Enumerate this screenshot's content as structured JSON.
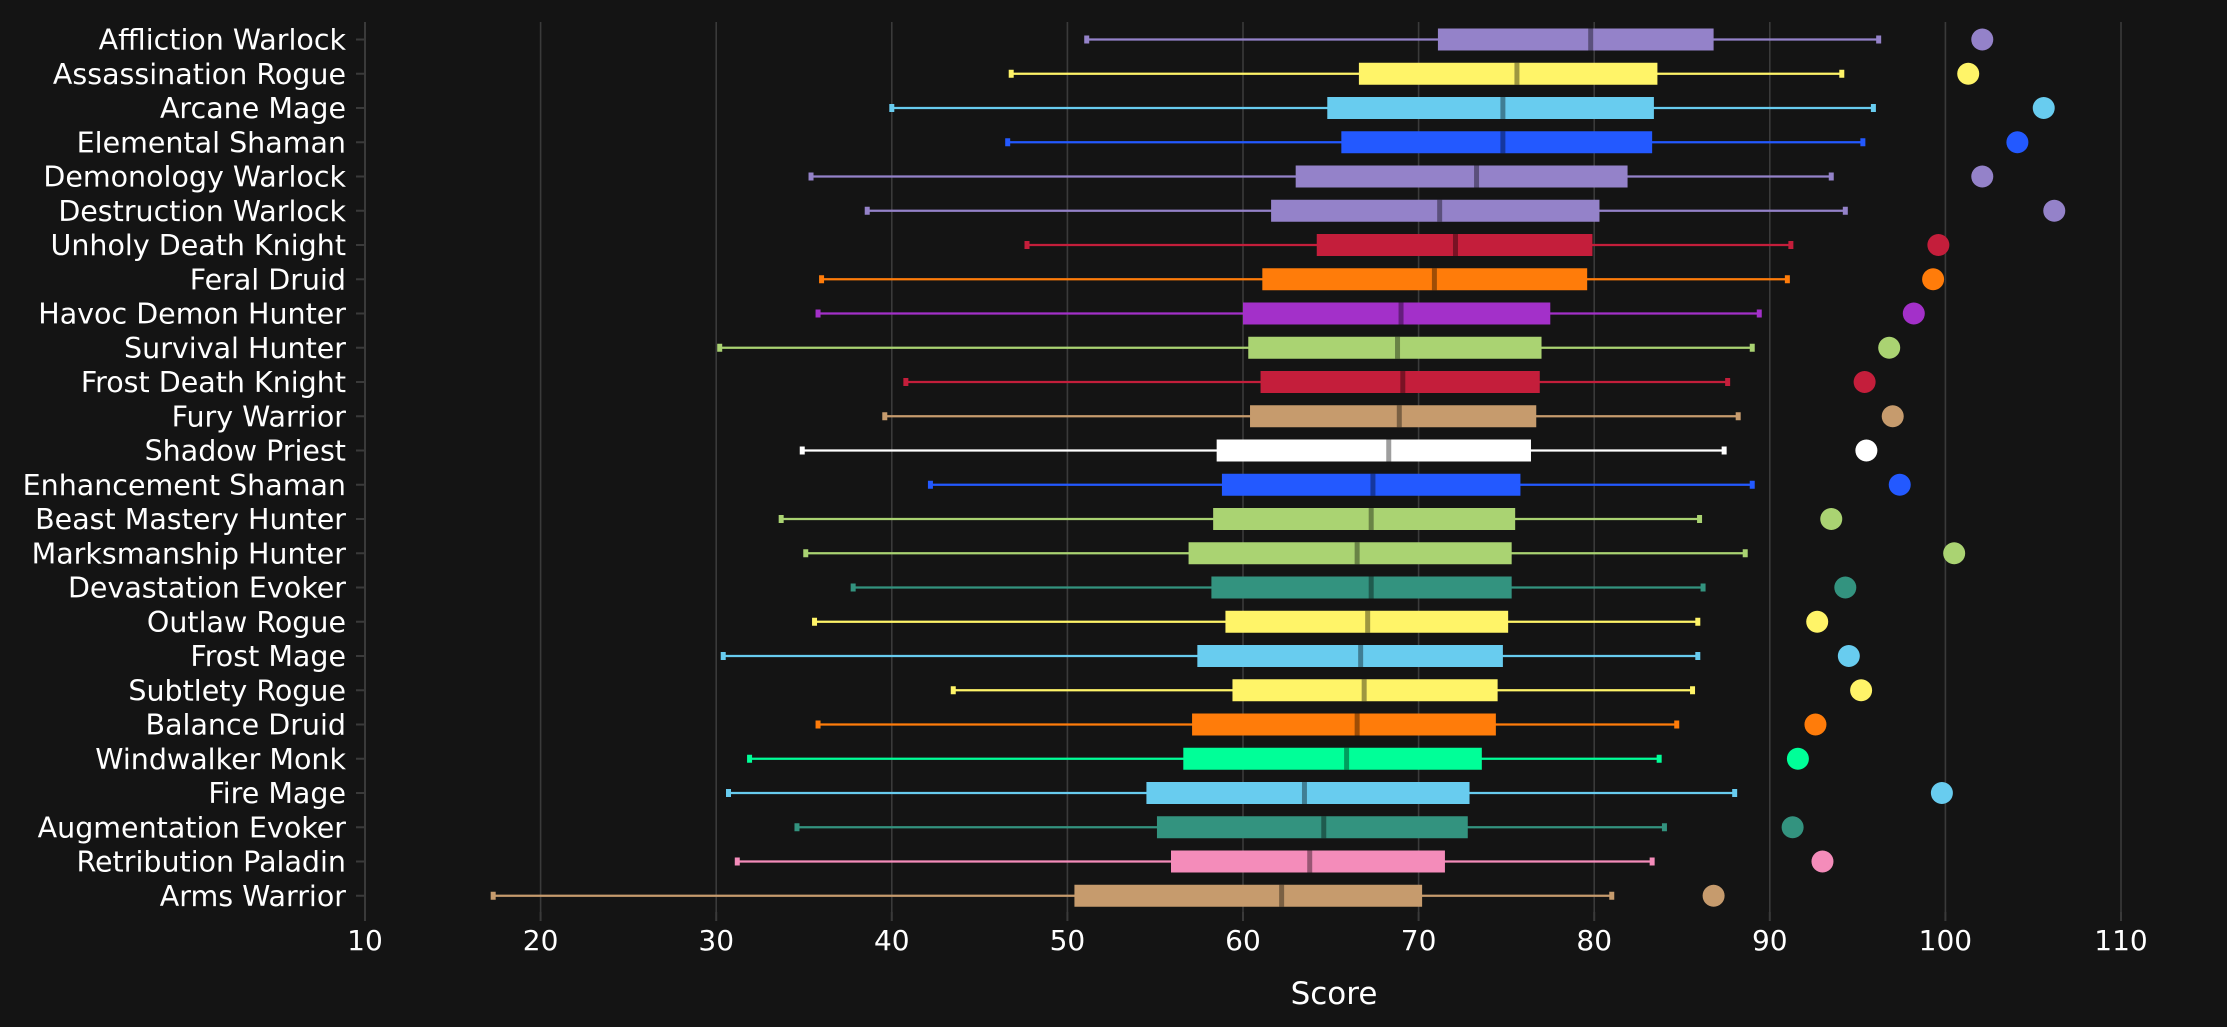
{
  "chart_data": {
    "type": "box",
    "xlabel": "Score",
    "xlim": [
      10,
      110
    ],
    "x_ticks": [
      10,
      20,
      30,
      40,
      50,
      60,
      70,
      80,
      90,
      100,
      110
    ],
    "grid": "vertical",
    "series": [
      {
        "name": "Affliction Warlock",
        "color": "#9482c9",
        "whisker_low": 51.1,
        "q1": 71.1,
        "median": 79.8,
        "q3": 86.8,
        "whisker_high": 96.2,
        "max_point": 102.1
      },
      {
        "name": "Assassination Rogue",
        "color": "#fff468",
        "whisker_low": 46.8,
        "q1": 66.6,
        "median": 75.6,
        "q3": 83.6,
        "whisker_high": 94.1,
        "max_point": 101.3
      },
      {
        "name": "Arcane Mage",
        "color": "#68ccef",
        "whisker_low": 40.0,
        "q1": 64.8,
        "median": 74.8,
        "q3": 83.4,
        "whisker_high": 95.9,
        "max_point": 105.6
      },
      {
        "name": "Elemental Shaman",
        "color": "#2359ff",
        "whisker_low": 46.6,
        "q1": 65.6,
        "median": 74.8,
        "q3": 83.3,
        "whisker_high": 95.3,
        "max_point": 104.1
      },
      {
        "name": "Demonology Warlock",
        "color": "#9482c9",
        "whisker_low": 35.4,
        "q1": 63.0,
        "median": 73.3,
        "q3": 81.9,
        "whisker_high": 93.5,
        "max_point": 102.1
      },
      {
        "name": "Destruction Warlock",
        "color": "#9482c9",
        "whisker_low": 38.6,
        "q1": 61.6,
        "median": 71.2,
        "q3": 80.3,
        "whisker_high": 94.3,
        "max_point": 106.2
      },
      {
        "name": "Unholy Death Knight",
        "color": "#c41e3b",
        "whisker_low": 47.7,
        "q1": 64.2,
        "median": 72.1,
        "q3": 79.9,
        "whisker_high": 91.2,
        "max_point": 99.6
      },
      {
        "name": "Feral Druid",
        "color": "#ff7c0a",
        "whisker_low": 36.0,
        "q1": 61.1,
        "median": 70.9,
        "q3": 79.6,
        "whisker_high": 91.0,
        "max_point": 99.3
      },
      {
        "name": "Havoc Demon Hunter",
        "color": "#a330c9",
        "whisker_low": 35.8,
        "q1": 60.0,
        "median": 69.0,
        "q3": 77.5,
        "whisker_high": 89.4,
        "max_point": 98.2
      },
      {
        "name": "Survival Hunter",
        "color": "#aad372",
        "whisker_low": 30.2,
        "q1": 60.3,
        "median": 68.8,
        "q3": 77.0,
        "whisker_high": 89.0,
        "max_point": 96.8
      },
      {
        "name": "Frost Death Knight",
        "color": "#c41e3b",
        "whisker_low": 40.8,
        "q1": 61.0,
        "median": 69.1,
        "q3": 76.9,
        "whisker_high": 87.6,
        "max_point": 95.4
      },
      {
        "name": "Fury Warrior",
        "color": "#c69b6d",
        "whisker_low": 39.6,
        "q1": 60.4,
        "median": 68.9,
        "q3": 76.7,
        "whisker_high": 88.2,
        "max_point": 97.0
      },
      {
        "name": "Shadow Priest",
        "color": "#ffffff",
        "whisker_low": 34.9,
        "q1": 58.5,
        "median": 68.3,
        "q3": 76.4,
        "whisker_high": 87.4,
        "max_point": 95.5
      },
      {
        "name": "Enhancement Shaman",
        "color": "#2359ff",
        "whisker_low": 42.2,
        "q1": 58.8,
        "median": 67.4,
        "q3": 75.8,
        "whisker_high": 89.0,
        "max_point": 97.4
      },
      {
        "name": "Beast Mastery Hunter",
        "color": "#aad372",
        "whisker_low": 33.7,
        "q1": 58.3,
        "median": 67.3,
        "q3": 75.5,
        "whisker_high": 86.0,
        "max_point": 93.5
      },
      {
        "name": "Marksmanship Hunter",
        "color": "#aad372",
        "whisker_low": 35.1,
        "q1": 56.9,
        "median": 66.5,
        "q3": 75.3,
        "whisker_high": 88.6,
        "max_point": 100.5
      },
      {
        "name": "Devastation Evoker",
        "color": "#33937f",
        "whisker_low": 37.8,
        "q1": 58.2,
        "median": 67.3,
        "q3": 75.3,
        "whisker_high": 86.2,
        "max_point": 94.3
      },
      {
        "name": "Outlaw Rogue",
        "color": "#fff468",
        "whisker_low": 35.6,
        "q1": 59.0,
        "median": 67.1,
        "q3": 75.1,
        "whisker_high": 85.9,
        "max_point": 92.7
      },
      {
        "name": "Frost Mage",
        "color": "#68ccef",
        "whisker_low": 30.4,
        "q1": 57.4,
        "median": 66.7,
        "q3": 74.8,
        "whisker_high": 85.9,
        "max_point": 94.5
      },
      {
        "name": "Subtlety Rogue",
        "color": "#fff468",
        "whisker_low": 43.5,
        "q1": 59.4,
        "median": 66.9,
        "q3": 74.5,
        "whisker_high": 85.6,
        "max_point": 95.2
      },
      {
        "name": "Balance Druid",
        "color": "#ff7c0a",
        "whisker_low": 35.8,
        "q1": 57.1,
        "median": 66.5,
        "q3": 74.4,
        "whisker_high": 84.7,
        "max_point": 92.6
      },
      {
        "name": "Windwalker Monk",
        "color": "#00ff98",
        "whisker_low": 31.9,
        "q1": 56.6,
        "median": 65.9,
        "q3": 73.6,
        "whisker_high": 83.7,
        "max_point": 91.6
      },
      {
        "name": "Fire Mage",
        "color": "#68ccef",
        "whisker_low": 30.7,
        "q1": 54.5,
        "median": 63.5,
        "q3": 72.9,
        "whisker_high": 88.0,
        "max_point": 99.8
      },
      {
        "name": "Augmentation Evoker",
        "color": "#33937f",
        "whisker_low": 34.6,
        "q1": 55.1,
        "median": 64.6,
        "q3": 72.8,
        "whisker_high": 84.0,
        "max_point": 91.3
      },
      {
        "name": "Retribution Paladin",
        "color": "#f48cba",
        "whisker_low": 31.2,
        "q1": 55.9,
        "median": 63.8,
        "q3": 71.5,
        "whisker_high": 83.3,
        "max_point": 93.0
      },
      {
        "name": "Arms Warrior",
        "color": "#c69b6d",
        "whisker_low": 17.3,
        "q1": 50.4,
        "median": 62.2,
        "q3": 70.2,
        "whisker_high": 81.0,
        "max_point": 86.8
      }
    ]
  }
}
